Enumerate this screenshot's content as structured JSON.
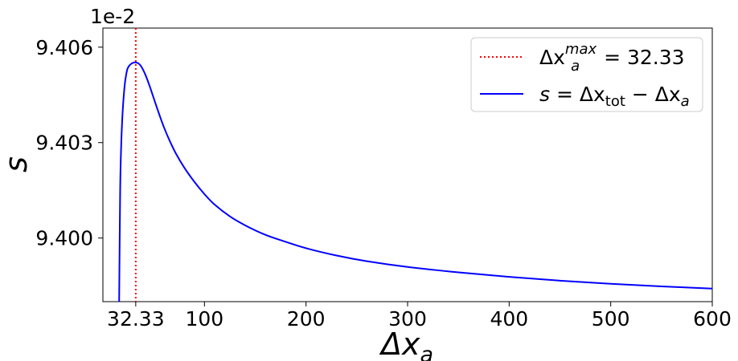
{
  "chart_data": {
    "type": "line",
    "xlabel": "Δx",
    "xlabel_sub": "a",
    "ylabel": "s",
    "offset_text": "1e-2",
    "xlim": [
      0,
      600
    ],
    "ylim": [
      9.398,
      9.4066
    ],
    "x_ticks": [
      32.33,
      100,
      200,
      300,
      400,
      500,
      600
    ],
    "x_tick_labels": [
      "32.33",
      "100",
      "200",
      "300",
      "400",
      "500",
      "600"
    ],
    "y_ticks": [
      9.4,
      9.403,
      9.406
    ],
    "y_tick_labels": [
      "9.400",
      "9.403",
      "9.406"
    ],
    "grid": false,
    "legend_position": "top-right",
    "series": [
      {
        "name": "s = Δx_tot − Δx_a",
        "color": "#0000ff",
        "style": "solid",
        "x": [
          16,
          17,
          18,
          19,
          20,
          21,
          22,
          23,
          24,
          25,
          26,
          28,
          30,
          32.33,
          35,
          38,
          42,
          46,
          50,
          55,
          60,
          66,
          72,
          80,
          90,
          100,
          110,
          125,
          140,
          160,
          180,
          200,
          230,
          260,
          300,
          350,
          400,
          450,
          500,
          550,
          600
        ],
        "values": [
          9.398,
          9.4015,
          9.4029,
          9.4037,
          9.40425,
          9.40465,
          9.40495,
          9.40515,
          9.4053,
          9.40537,
          9.40542,
          9.40548,
          9.40551,
          9.40552,
          9.40549,
          9.40538,
          9.40512,
          9.40478,
          9.4044,
          9.40393,
          9.40349,
          9.40304,
          9.40265,
          9.40222,
          9.40177,
          9.40138,
          9.40105,
          9.40068,
          9.4004,
          9.4001,
          9.39988,
          9.39968,
          9.39945,
          9.39927,
          9.39909,
          9.39892,
          9.39878,
          9.39866,
          9.39856,
          9.39848,
          9.39841
        ]
      }
    ],
    "vlines": [
      {
        "name": "Δx_a^max = 32.33",
        "x": 32.33,
        "color": "#ff0000",
        "style": "dotted"
      }
    ],
    "legend": [
      {
        "kind": "vline",
        "label_pre": "Δx",
        "label_sub": "a",
        "label_sup": "max",
        "label_post": " = 32.33"
      },
      {
        "kind": "series",
        "label_var": "s",
        "label_eq": " = Δx",
        "label_sub1": "tot",
        "label_mid": " − Δx",
        "label_sub2": "a"
      }
    ]
  }
}
